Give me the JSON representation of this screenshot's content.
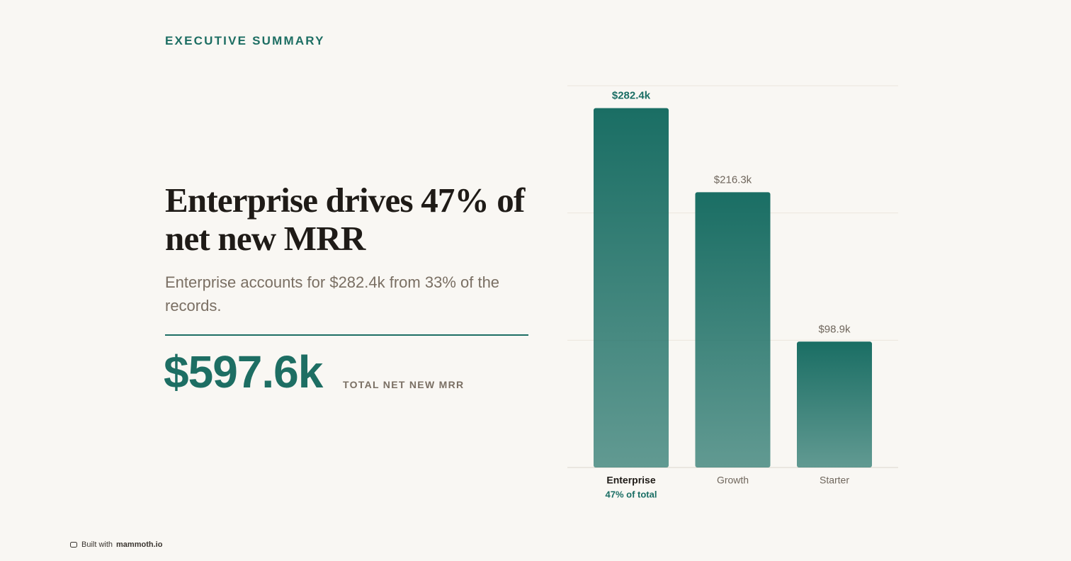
{
  "eyebrow": "EXECUTIVE SUMMARY",
  "headline": "Enterprise drives 47% of net new MRR",
  "subtitle": "Enterprise accounts for $282.4k from 33% of the records.",
  "kpi": {
    "value": "$597.6k",
    "label": "TOTAL NET NEW MRR"
  },
  "footer": {
    "prefix": "Built with",
    "brand": "mammoth.io"
  },
  "chart_data": {
    "type": "bar",
    "categories": [
      "Enterprise",
      "Growth",
      "Starter"
    ],
    "values": [
      282.4,
      216.3,
      98.9
    ],
    "value_labels": [
      "$282.4k",
      "$216.3k",
      "$98.9k"
    ],
    "annotation": "47% of total",
    "color": "#1a6e64",
    "ylim": [
      0,
      300
    ],
    "yticks": [
      0,
      100,
      200,
      300
    ],
    "grid": true
  }
}
